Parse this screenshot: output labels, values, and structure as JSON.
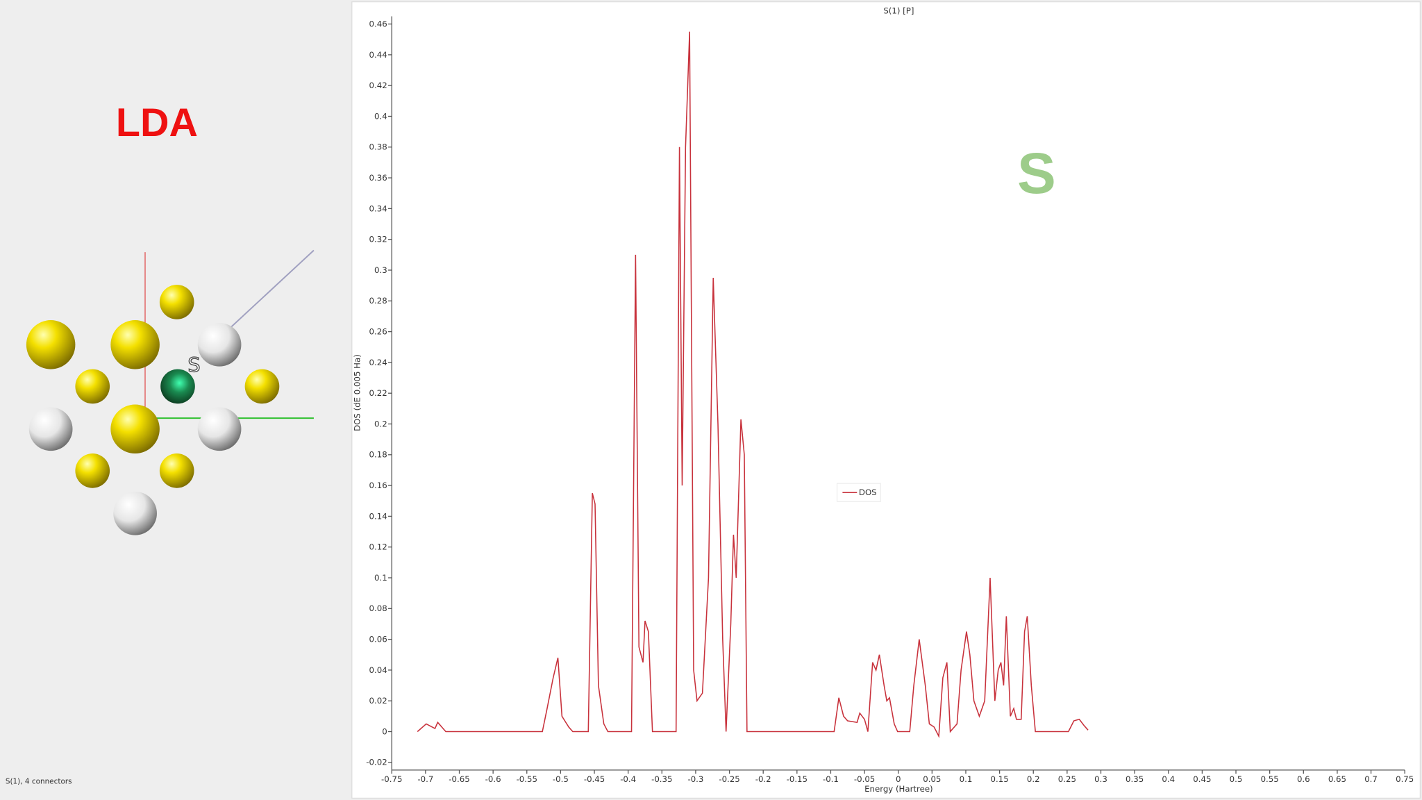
{
  "left_panel": {
    "label": "LDA",
    "atom_label": "S",
    "status": "S(1), 4 connectors"
  },
  "overlay_label": "S",
  "chart_data": {
    "type": "line",
    "title": "S(1) [P]",
    "x_label": "Energy (Hartree)",
    "y_label": "DOS (dE 0.005 Ha)",
    "xlim": [
      -0.75,
      0.75
    ],
    "ylim": [
      -0.025,
      0.465
    ],
    "xticks": [
      -0.75,
      -0.7,
      -0.65,
      -0.6,
      -0.55,
      -0.5,
      -0.45,
      -0.4,
      -0.35,
      -0.3,
      -0.25,
      -0.2,
      -0.15,
      -0.1,
      -0.05,
      0,
      0.05,
      0.1,
      0.15,
      0.2,
      0.25,
      0.3,
      0.35,
      0.4,
      0.45,
      0.5,
      0.55,
      0.6,
      0.65,
      0.7,
      0.75
    ],
    "yticks": [
      -0.02,
      0,
      0.02,
      0.04,
      0.06,
      0.08,
      0.1,
      0.12,
      0.14,
      0.16,
      0.18,
      0.2,
      0.22,
      0.24,
      0.26,
      0.28,
      0.3,
      0.32,
      0.34,
      0.36,
      0.38,
      0.4,
      0.42,
      0.44,
      0.46
    ],
    "legend": "center",
    "x": [
      -0.712,
      -0.699,
      -0.686,
      -0.682,
      -0.676,
      -0.67,
      -0.527,
      -0.52,
      -0.511,
      -0.504,
      -0.498,
      -0.488,
      -0.482,
      -0.459,
      -0.453,
      -0.449,
      -0.444,
      -0.436,
      -0.43,
      -0.395,
      -0.389,
      -0.384,
      -0.378,
      -0.375,
      -0.37,
      -0.364,
      -0.329,
      -0.324,
      -0.32,
      -0.315,
      -0.309,
      -0.303,
      -0.298,
      -0.29,
      -0.281,
      -0.274,
      -0.267,
      -0.26,
      -0.255,
      -0.248,
      -0.244,
      -0.24,
      -0.233,
      -0.228,
      -0.224,
      -0.095,
      -0.088,
      -0.081,
      -0.075,
      -0.061,
      -0.057,
      -0.05,
      -0.045,
      -0.038,
      -0.033,
      -0.028,
      -0.021,
      -0.017,
      -0.013,
      -0.006,
      -0.001,
      0.017,
      0.023,
      0.031,
      0.04,
      0.046,
      0.053,
      0.06,
      0.066,
      0.072,
      0.077,
      0.087,
      0.093,
      0.101,
      0.106,
      0.112,
      0.12,
      0.128,
      0.136,
      0.143,
      0.148,
      0.152,
      0.156,
      0.16,
      0.166,
      0.171,
      0.175,
      0.182,
      0.187,
      0.191,
      0.197,
      0.203,
      0.252,
      0.26,
      0.268,
      0.275,
      0.281
    ],
    "series": [
      {
        "name": "DOS",
        "color": "#c8323c",
        "values": [
          0,
          0.005,
          0.002,
          0.006,
          0.003,
          0,
          0,
          0.015,
          0.035,
          0.048,
          0.01,
          0.003,
          0,
          0,
          0.155,
          0.148,
          0.03,
          0.005,
          0,
          0,
          0.31,
          0.055,
          0.045,
          0.072,
          0.065,
          0,
          0,
          0.38,
          0.16,
          0.38,
          0.455,
          0.04,
          0.02,
          0.025,
          0.1,
          0.295,
          0.2,
          0.06,
          0,
          0.07,
          0.128,
          0.1,
          0.203,
          0.18,
          0,
          0,
          0.022,
          0.01,
          0.007,
          0.006,
          0.012,
          0.008,
          0,
          0.045,
          0.04,
          0.05,
          0.03,
          0.02,
          0.022,
          0.005,
          0,
          0,
          0.03,
          0.06,
          0.03,
          0.005,
          0.003,
          -0.003,
          0.035,
          0.045,
          0,
          0.005,
          0.04,
          0.065,
          0.05,
          0.02,
          0.01,
          0.02,
          0.1,
          0.02,
          0.04,
          0.045,
          0.03,
          0.075,
          0.01,
          0.015,
          0.008,
          0.008,
          0.065,
          0.075,
          0.03,
          0,
          0,
          0.007,
          0.008,
          0.004,
          0.001
        ]
      }
    ]
  }
}
